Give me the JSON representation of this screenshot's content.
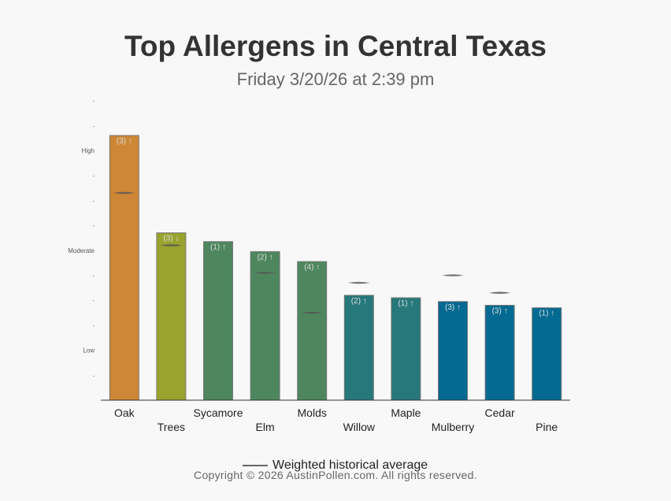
{
  "chart_data": {
    "type": "bar",
    "title": "Top Allergens in Central Texas",
    "subtitle": "Friday 3/20/26 at 2:39 pm",
    "xlabel": "",
    "ylabel": "",
    "ylim": [
      0,
      12
    ],
    "y_tick_labels": [
      {
        "value": 2,
        "label": "Low"
      },
      {
        "value": 6,
        "label": "Moderate"
      },
      {
        "value": 10,
        "label": "High"
      }
    ],
    "minor_tick_label": "-",
    "categories": [
      "Oak",
      "Trees",
      "Sycamore",
      "Elm",
      "Molds",
      "Willow",
      "Maple",
      "Mulberry",
      "Cedar",
      "Pine"
    ],
    "values": [
      10.6,
      6.7,
      6.35,
      5.95,
      5.55,
      4.2,
      4.1,
      3.95,
      3.8,
      3.7
    ],
    "bar_labels": [
      "(3) ↑",
      "(3) ↓",
      "(1) ↑",
      "(2) ↑",
      "(4) ↑",
      "(2) ↑",
      "(1) ↑",
      "(3) ↑",
      "(3) ↑",
      "(1) ↑"
    ],
    "historical_average": [
      8.3,
      6.2,
      null,
      5.1,
      3.5,
      4.7,
      null,
      5.0,
      4.3,
      null
    ],
    "bar_colors": [
      "#cd8736",
      "#99a32e",
      "#4e875e",
      "#4e875e",
      "#4e875e",
      "#27787a",
      "#27787a",
      "#046a91",
      "#046a91",
      "#046a91"
    ],
    "legend": [
      {
        "name": "Weighted historical average",
        "color": "#666666"
      }
    ],
    "grid": false
  },
  "footer": {
    "copyright": "Copyright © 2026 AustinPollen.com.  All rights reserved."
  }
}
